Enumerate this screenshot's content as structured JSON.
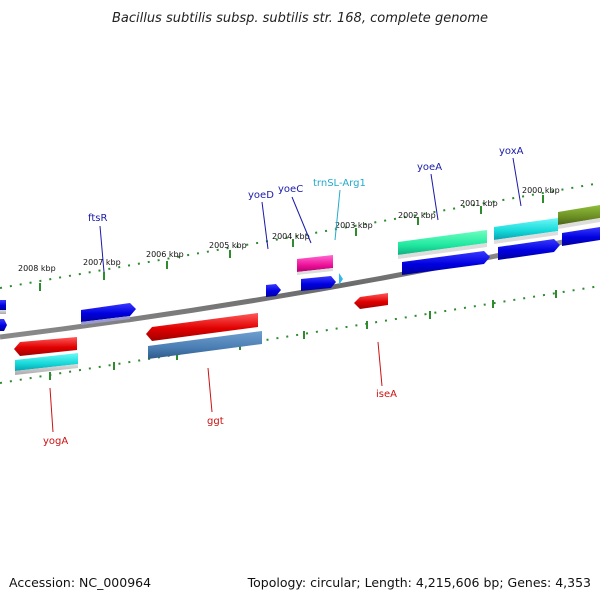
{
  "title": "Bacillus subtilis subsp. subtilis str. 168, complete genome",
  "footer": {
    "accession": "Accession: NC_000964",
    "topology": "Topology: circular; Length: 4,215,606 bp; Genes: 4,353"
  },
  "colors": {
    "backbone": "#777777",
    "forward_label": "#1a1aaa",
    "reverse_label": "#cc1111",
    "rna_label": "#22aacc",
    "tick": "#2e8b2e"
  },
  "scale_labels": [
    "2008 kbp",
    "2007 kbp",
    "2006 kbp",
    "2005 kbp",
    "2004 kbp",
    "2003 kbp",
    "2002 kbp",
    "2001 kbp",
    "2000 kbp"
  ],
  "gene_labels": {
    "ftsR": "ftsR",
    "yoeD": "yoeD",
    "yoeC": "yoeC",
    "trnSL_Arg1": "trnSL-Arg1",
    "yoeA": "yoeA",
    "yoxA": "yoxA",
    "yogA": "yogA",
    "ggt": "ggt",
    "iseA": "iseA"
  }
}
